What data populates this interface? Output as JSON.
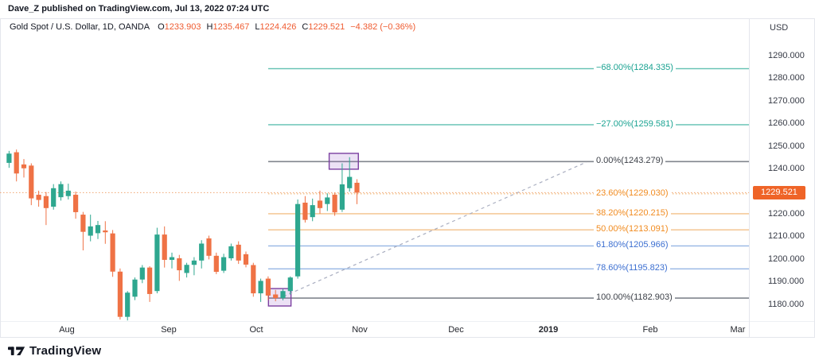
{
  "attribution": "Dave_Z published on TradingView.com, Jul 13, 2022 07:24 UTC",
  "legend": {
    "symbol": "Gold Spot / U.S. Dollar, 1D, OANDA",
    "ohlc": [
      {
        "label": "O",
        "value": "1233.903"
      },
      {
        "label": "H",
        "value": "1235.467"
      },
      {
        "label": "L",
        "value": "1224.426"
      },
      {
        "label": "C",
        "value": "1229.521"
      }
    ],
    "change": "−4.382 (−0.36%)"
  },
  "axis": {
    "currency": "USD",
    "price_ticks": [
      "1290.000",
      "1280.000",
      "1270.000",
      "1260.000",
      "1250.000",
      "1240.000",
      "1220.000",
      "1210.000",
      "1200.000",
      "1190.000",
      "1180.000"
    ],
    "price_tick_values": [
      1290,
      1280,
      1270,
      1260,
      1250,
      1240,
      1220,
      1210,
      1200,
      1190,
      1180
    ],
    "months": [
      {
        "label": "Aug"
      },
      {
        "label": "Sep"
      },
      {
        "label": "Oct"
      },
      {
        "label": "Nov"
      },
      {
        "label": "Dec"
      },
      {
        "label": "2019",
        "emphasis": true
      },
      {
        "label": "Feb"
      },
      {
        "label": "Mar"
      }
    ],
    "last_price": "1229.521"
  },
  "footer": {
    "brand": "TradingView"
  },
  "colors": {
    "up": "#2ea78f",
    "down": "#ef7245",
    "legend_value": "#ef5b30",
    "badge_bg": "#ef6427",
    "price_line": "#f0a471",
    "fib_teal_label": "#1ba392",
    "fib_teal_line": "#5fbfb0",
    "fib_gray_label": "#3c4048",
    "fib_gray_line": "#81858d",
    "fib_orange_label": "#f18c21",
    "fib_orange_line": "#f3c088",
    "fib_blue_label": "#3c6fd1",
    "fib_blue_line": "#96b6e4",
    "box_fill": "rgba(152,86,201,0.18)",
    "box_border": "#7b3fa0",
    "trend_line": "#a9aec0",
    "text": "#131722"
  },
  "chart_data": {
    "type": "candlestick",
    "title": "Gold Spot / U.S. Dollar, 1D, OANDA",
    "currency": "USD",
    "current_price": 1229.521,
    "x_axis_labels": [
      "Aug",
      "Sep",
      "Oct",
      "Nov",
      "Dec",
      "2019",
      "Feb",
      "Mar"
    ],
    "y_axis_ticks": [
      1290,
      1280,
      1270,
      1260,
      1250,
      1240,
      1220,
      1210,
      1200,
      1190,
      1180
    ],
    "y_range_visible": [
      1172,
      1293
    ],
    "grid": false,
    "candles_ohlc": [
      [
        1242.7,
        1248.0,
        1240.5,
        1246.8
      ],
      [
        1247.4,
        1248.6,
        1234.5,
        1238.0
      ],
      [
        1242.0,
        1244.4,
        1236.2,
        1240.3
      ],
      [
        1241.5,
        1242.5,
        1224.0,
        1227.0
      ],
      [
        1228.6,
        1230.4,
        1223.3,
        1226.3
      ],
      [
        1228.0,
        1229.8,
        1215.2,
        1222.7
      ],
      [
        1223.3,
        1233.3,
        1222.0,
        1231.5
      ],
      [
        1227.5,
        1234.5,
        1226.0,
        1233.3
      ],
      [
        1228.0,
        1233.5,
        1226.5,
        1230.4
      ],
      [
        1228.6,
        1230.0,
        1218.0,
        1220.9
      ],
      [
        1219.8,
        1221.0,
        1204.0,
        1212.2
      ],
      [
        1210.5,
        1219.8,
        1208.0,
        1214.6
      ],
      [
        1211.6,
        1217.0,
        1209.0,
        1215.2
      ],
      [
        1212.8,
        1216.9,
        1206.9,
        1212.0
      ],
      [
        1211.5,
        1213.0,
        1192.3,
        1194.6
      ],
      [
        1194.6,
        1196.0,
        1173.4,
        1174.6
      ],
      [
        1174.6,
        1186.0,
        1173.0,
        1185.3
      ],
      [
        1183.5,
        1192.0,
        1182.0,
        1191.1
      ],
      [
        1191.1,
        1197.5,
        1189.5,
        1196.4
      ],
      [
        1196.4,
        1197.0,
        1181.2,
        1184.7
      ],
      [
        1186.0,
        1214.0,
        1185.0,
        1211.0
      ],
      [
        1211.0,
        1214.6,
        1196.4,
        1199.8
      ],
      [
        1199.8,
        1203.0,
        1196.0,
        1201.0
      ],
      [
        1200.5,
        1202.0,
        1190.5,
        1195.2
      ],
      [
        1194.0,
        1198.5,
        1192.0,
        1197.6
      ],
      [
        1197.6,
        1201.0,
        1193.0,
        1199.5
      ],
      [
        1199.5,
        1208.5,
        1196.0,
        1207.0
      ],
      [
        1209.3,
        1210.5,
        1200.0,
        1201.6
      ],
      [
        1201.6,
        1203.0,
        1193.5,
        1194.5
      ],
      [
        1195.0,
        1202.5,
        1194.0,
        1201.0
      ],
      [
        1200.5,
        1207.0,
        1199.5,
        1205.8
      ],
      [
        1206.5,
        1208.0,
        1198.0,
        1199.5
      ],
      [
        1202.3,
        1203.5,
        1196.5,
        1197.7
      ],
      [
        1197.5,
        1198.5,
        1183.5,
        1185.0
      ],
      [
        1185.0,
        1191.5,
        1181.2,
        1190.5
      ],
      [
        1191.5,
        1192.5,
        1182.0,
        1184.0
      ],
      [
        1184.5,
        1186.5,
        1181.5,
        1182.9
      ],
      [
        1182.9,
        1187.0,
        1181.9,
        1186.0
      ],
      [
        1186.0,
        1192.5,
        1184.5,
        1192.0
      ],
      [
        1192.5,
        1226.5,
        1191.5,
        1224.5
      ],
      [
        1225.1,
        1228.0,
        1216.3,
        1217.5
      ],
      [
        1218.7,
        1226.9,
        1216.9,
        1224.0
      ],
      [
        1226.0,
        1230.4,
        1220.2,
        1222.7
      ],
      [
        1224.5,
        1229.2,
        1221.4,
        1227.4
      ],
      [
        1228.6,
        1229.5,
        1219.3,
        1220.8
      ],
      [
        1222.0,
        1242.5,
        1221.0,
        1233.2
      ],
      [
        1231.5,
        1245.2,
        1230.0,
        1236.5
      ],
      [
        1233.903,
        1235.467,
        1224.426,
        1229.521
      ]
    ],
    "fib_retracement": {
      "levels": [
        {
          "percent": -68.0,
          "price": 1284.335,
          "label": "−68.00%(1284.335)",
          "color_key": "teal"
        },
        {
          "percent": -27.0,
          "price": 1259.581,
          "label": "−27.00%(1259.581)",
          "color_key": "teal"
        },
        {
          "percent": 0.0,
          "price": 1243.279,
          "label": "0.00%(1243.279)",
          "color_key": "gray"
        },
        {
          "percent": 23.6,
          "price": 1229.03,
          "label": "23.60%(1229.030)",
          "color_key": "orange",
          "dotted": true
        },
        {
          "percent": 38.2,
          "price": 1220.215,
          "label": "38.20%(1220.215)",
          "color_key": "orange"
        },
        {
          "percent": 50.0,
          "price": 1213.091,
          "label": "50.00%(1213.091)",
          "color_key": "orange"
        },
        {
          "percent": 61.8,
          "price": 1205.966,
          "label": "61.80%(1205.966)",
          "color_key": "blue"
        },
        {
          "percent": 78.6,
          "price": 1195.823,
          "label": "78.60%(1195.823)",
          "color_key": "blue"
        },
        {
          "percent": 100.0,
          "price": 1182.903,
          "label": "100.00%(1182.903)",
          "color_key": "gray"
        }
      ],
      "low_anchor": 1182.903,
      "high_anchor": 1243.279
    },
    "trend_line": {
      "style": "dashed",
      "x1_index": 37.4,
      "y1_price": 1183.6,
      "x2_index": 78.3,
      "y2_price": 1243.0
    },
    "boxes": [
      {
        "from_index": 35.7,
        "to_index": 38.1,
        "top_price": 1187.1,
        "bottom_price": 1179.4
      },
      {
        "from_index": 43.9,
        "to_index": 47.2,
        "top_price": 1246.9,
        "bottom_price": 1239.9
      }
    ]
  }
}
